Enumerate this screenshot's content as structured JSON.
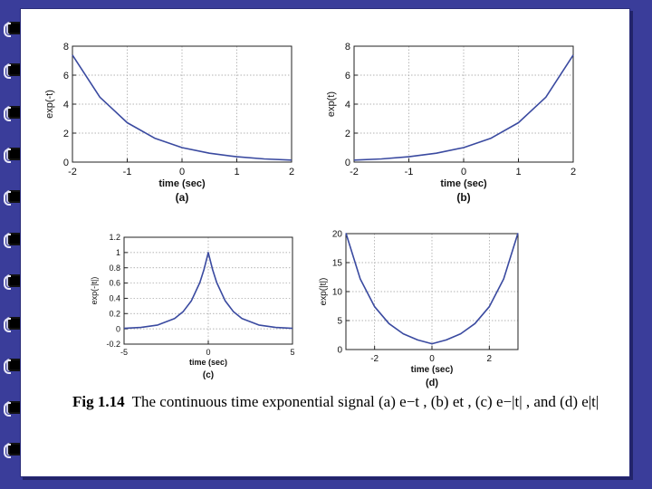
{
  "slide": {
    "caption_prefix": "Fig 1.14",
    "caption_text": "The continuous time exponential signal (a) e−t , (b) et , (c) e−|t| , and (d) e|t|"
  },
  "colors": {
    "curve": "#3a4aa0",
    "grid": "#9a9a9a",
    "background": "#3a3d9a"
  },
  "chart_data": [
    {
      "id": "a",
      "type": "line",
      "panel_label": "(a)",
      "xlabel": "time (sec)",
      "ylabel": "exp(-t)",
      "xlim": [
        -2,
        2
      ],
      "ylim": [
        0,
        8
      ],
      "xticks": [
        -2,
        -1,
        0,
        1,
        2
      ],
      "yticks": [
        0,
        2,
        4,
        6,
        8
      ],
      "grid": true,
      "series": [
        {
          "x": [
            -2,
            -1.5,
            -1,
            -0.5,
            0,
            0.5,
            1,
            1.5,
            2
          ],
          "y": [
            7.39,
            4.48,
            2.72,
            1.65,
            1.0,
            0.61,
            0.37,
            0.22,
            0.14
          ]
        }
      ]
    },
    {
      "id": "b",
      "type": "line",
      "panel_label": "(b)",
      "xlabel": "time (sec)",
      "ylabel": "exp(t)",
      "xlim": [
        -2,
        2
      ],
      "ylim": [
        0,
        8
      ],
      "xticks": [
        -2,
        -1,
        0,
        1,
        2
      ],
      "yticks": [
        0,
        2,
        4,
        6,
        8
      ],
      "grid": true,
      "series": [
        {
          "x": [
            -2,
            -1.5,
            -1,
            -0.5,
            0,
            0.5,
            1,
            1.5,
            2
          ],
          "y": [
            0.14,
            0.22,
            0.37,
            0.61,
            1.0,
            1.65,
            2.72,
            4.48,
            7.39
          ]
        }
      ]
    },
    {
      "id": "c",
      "type": "line",
      "panel_label": "(c)",
      "xlabel": "time (sec)",
      "ylabel": "exp(-|t|)",
      "xlim": [
        -5,
        5
      ],
      "ylim": [
        -0.2,
        1.2
      ],
      "xticks": [
        -5,
        0,
        5
      ],
      "yticks": [
        -0.2,
        0,
        0.2,
        0.4,
        0.6,
        0.8,
        1,
        1.2
      ],
      "ytick_labels": [
        "-0.2",
        "0",
        "0.2",
        "0.4",
        "0.6",
        "0.8",
        "1",
        "1.2"
      ],
      "grid": true,
      "series": [
        {
          "x": [
            -5,
            -4,
            -3,
            -2,
            -1.5,
            -1,
            -0.5,
            -0.25,
            0,
            0.25,
            0.5,
            1,
            1.5,
            2,
            3,
            4,
            5
          ],
          "y": [
            0.007,
            0.018,
            0.05,
            0.135,
            0.223,
            0.368,
            0.607,
            0.779,
            1.0,
            0.779,
            0.607,
            0.368,
            0.223,
            0.135,
            0.05,
            0.018,
            0.007
          ]
        }
      ]
    },
    {
      "id": "d",
      "type": "line",
      "panel_label": "(d)",
      "xlabel": "time (sec)",
      "ylabel": "exp(|t|)",
      "xlim": [
        -3,
        3
      ],
      "ylim": [
        0,
        20
      ],
      "xticks": [
        -2,
        0,
        2
      ],
      "yticks": [
        0,
        5,
        10,
        15,
        20
      ],
      "grid": true,
      "series": [
        {
          "x": [
            -3,
            -2.5,
            -2,
            -1.5,
            -1,
            -0.5,
            0,
            0.5,
            1,
            1.5,
            2,
            2.5,
            3
          ],
          "y": [
            20.09,
            12.18,
            7.39,
            4.48,
            2.72,
            1.65,
            1.0,
            1.65,
            2.72,
            4.48,
            7.39,
            12.18,
            20.09
          ]
        }
      ]
    }
  ]
}
